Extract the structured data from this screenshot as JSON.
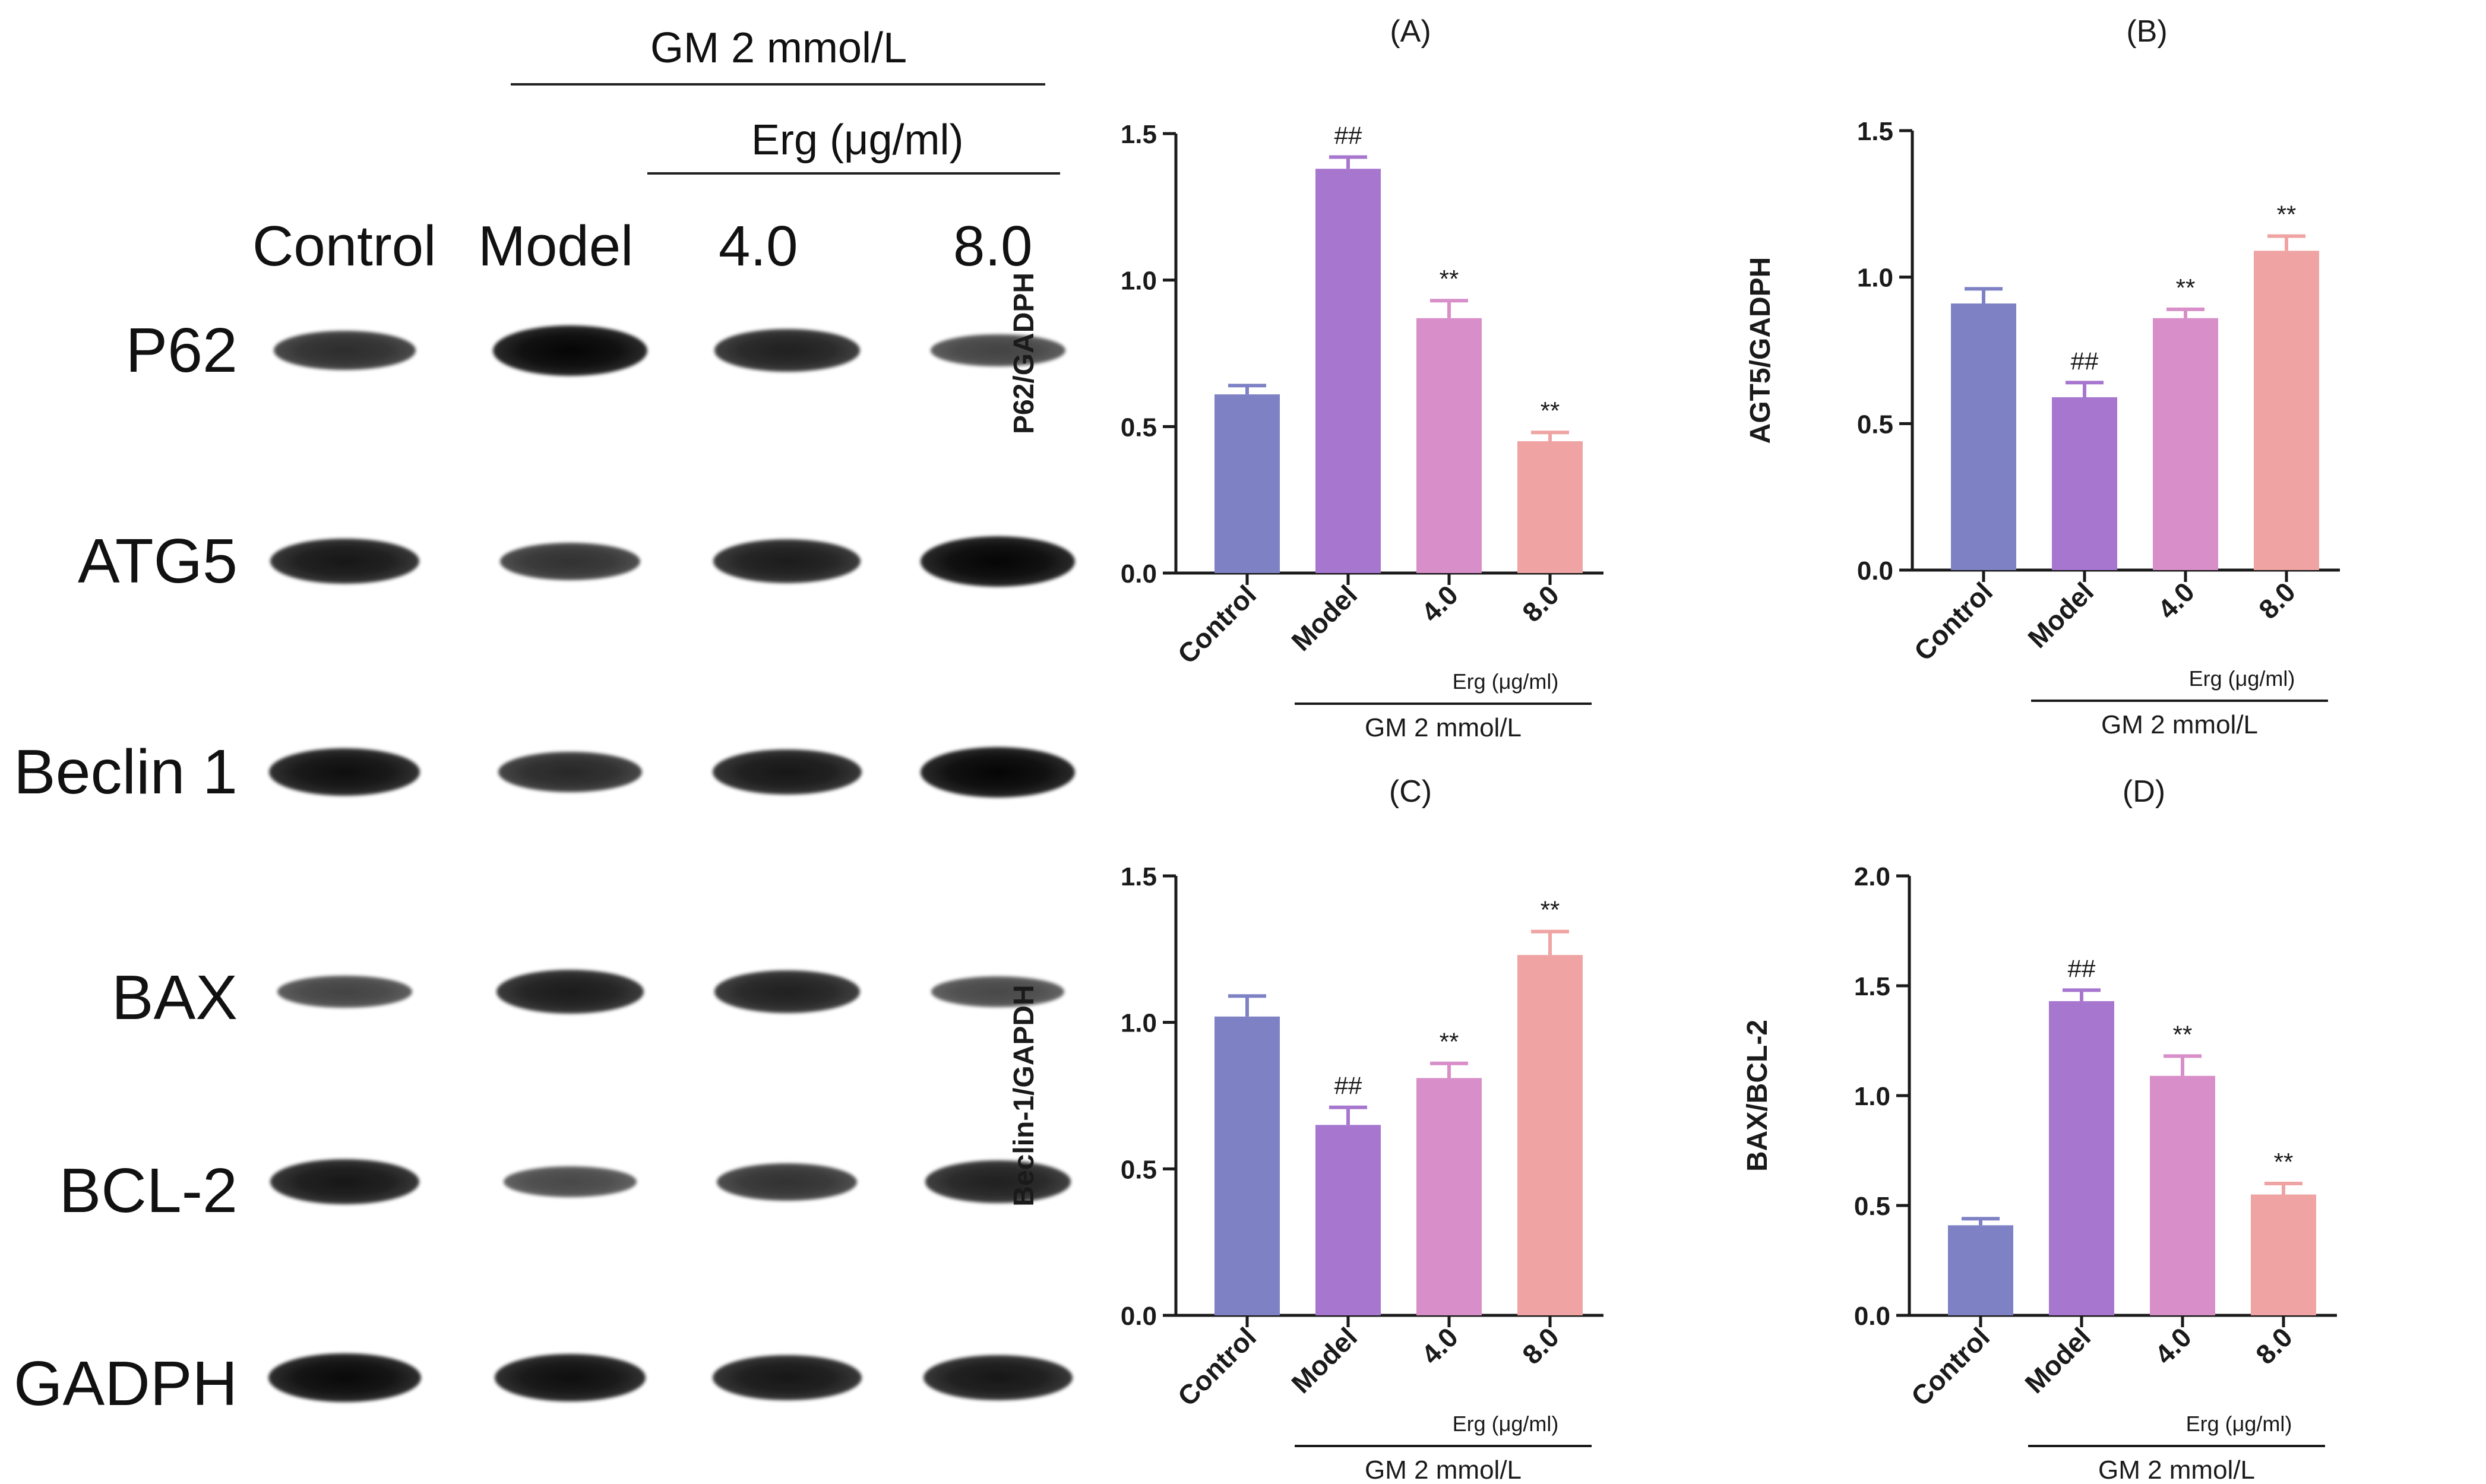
{
  "western_blot": {
    "header_treatment": "GM 2 mmol/L",
    "header_dose": "Erg (μg/ml)",
    "lanes": [
      "Control",
      "Model",
      "4.0",
      "8.0"
    ],
    "rows": [
      {
        "label": "P62",
        "intensity": [
          0.65,
          1.0,
          0.75,
          0.45
        ]
      },
      {
        "label": "ATG5",
        "intensity": [
          0.85,
          0.6,
          0.8,
          1.0
        ]
      },
      {
        "label": "Beclin 1",
        "intensity": [
          0.9,
          0.7,
          0.85,
          1.0
        ]
      },
      {
        "label": "BAX",
        "intensity": [
          0.45,
          0.8,
          0.75,
          0.4
        ]
      },
      {
        "label": "BCL-2",
        "intensity": [
          0.85,
          0.4,
          0.6,
          0.75
        ]
      },
      {
        "label": "GADPH",
        "intensity": [
          0.95,
          0.9,
          0.85,
          0.85
        ]
      }
    ]
  },
  "colors": {
    "control": "#7e82c4",
    "model": "#a776cf",
    "erg4": "#d88ec8",
    "erg8": "#efa3a3",
    "axis": "#1a1a1a"
  },
  "chart_data": [
    {
      "type": "bar",
      "title": "(A)",
      "ylabel": "P62/GADPH",
      "categories": [
        "Control",
        "Model",
        "4.0",
        "8.0"
      ],
      "values": [
        0.61,
        1.38,
        0.87,
        0.45
      ],
      "errors": [
        0.03,
        0.04,
        0.06,
        0.03
      ],
      "marks": [
        "",
        "##",
        "**",
        "**"
      ],
      "ylim": [
        0,
        1.5
      ],
      "yticks": [
        "0.0",
        "0.5",
        "1.0",
        "1.5"
      ],
      "dose_label": "Erg (μg/ml)",
      "group_label": "GM 2 mmol/L"
    },
    {
      "type": "bar",
      "title": "(B)",
      "ylabel": "AGT5/GADPH",
      "categories": [
        "Control",
        "Model",
        "4.0",
        "8.0"
      ],
      "values": [
        0.91,
        0.59,
        0.86,
        1.09
      ],
      "errors": [
        0.05,
        0.05,
        0.03,
        0.05
      ],
      "marks": [
        "",
        "##",
        "**",
        "**"
      ],
      "ylim": [
        0,
        1.5
      ],
      "yticks": [
        "0.0",
        "0.5",
        "1.0",
        "1.5"
      ],
      "dose_label": "Erg (μg/ml)",
      "group_label": "GM 2 mmol/L"
    },
    {
      "type": "bar",
      "title": "(C)",
      "ylabel": "Beclin-1/GAPDH",
      "categories": [
        "Control",
        "Model",
        "4.0",
        "8.0"
      ],
      "values": [
        1.02,
        0.65,
        0.81,
        1.23
      ],
      "errors": [
        0.07,
        0.06,
        0.05,
        0.08
      ],
      "marks": [
        "",
        "##",
        "**",
        "**"
      ],
      "ylim": [
        0,
        1.5
      ],
      "yticks": [
        "0.0",
        "0.5",
        "1.0",
        "1.5"
      ],
      "dose_label": "Erg (μg/ml)",
      "group_label": "GM 2 mmol/L"
    },
    {
      "type": "bar",
      "title": "(D)",
      "ylabel": "BAX/BCL-2",
      "categories": [
        "Control",
        "Model",
        "4.0",
        "8.0"
      ],
      "values": [
        0.41,
        1.43,
        1.09,
        0.55
      ],
      "errors": [
        0.03,
        0.05,
        0.09,
        0.05
      ],
      "marks": [
        "",
        "##",
        "**",
        "**"
      ],
      "ylim": [
        0,
        2.0
      ],
      "yticks": [
        "0.0",
        "0.5",
        "1.0",
        "1.5",
        "2.0"
      ],
      "dose_label": "Erg (μg/ml)",
      "group_label": "GM 2 mmol/L"
    }
  ]
}
